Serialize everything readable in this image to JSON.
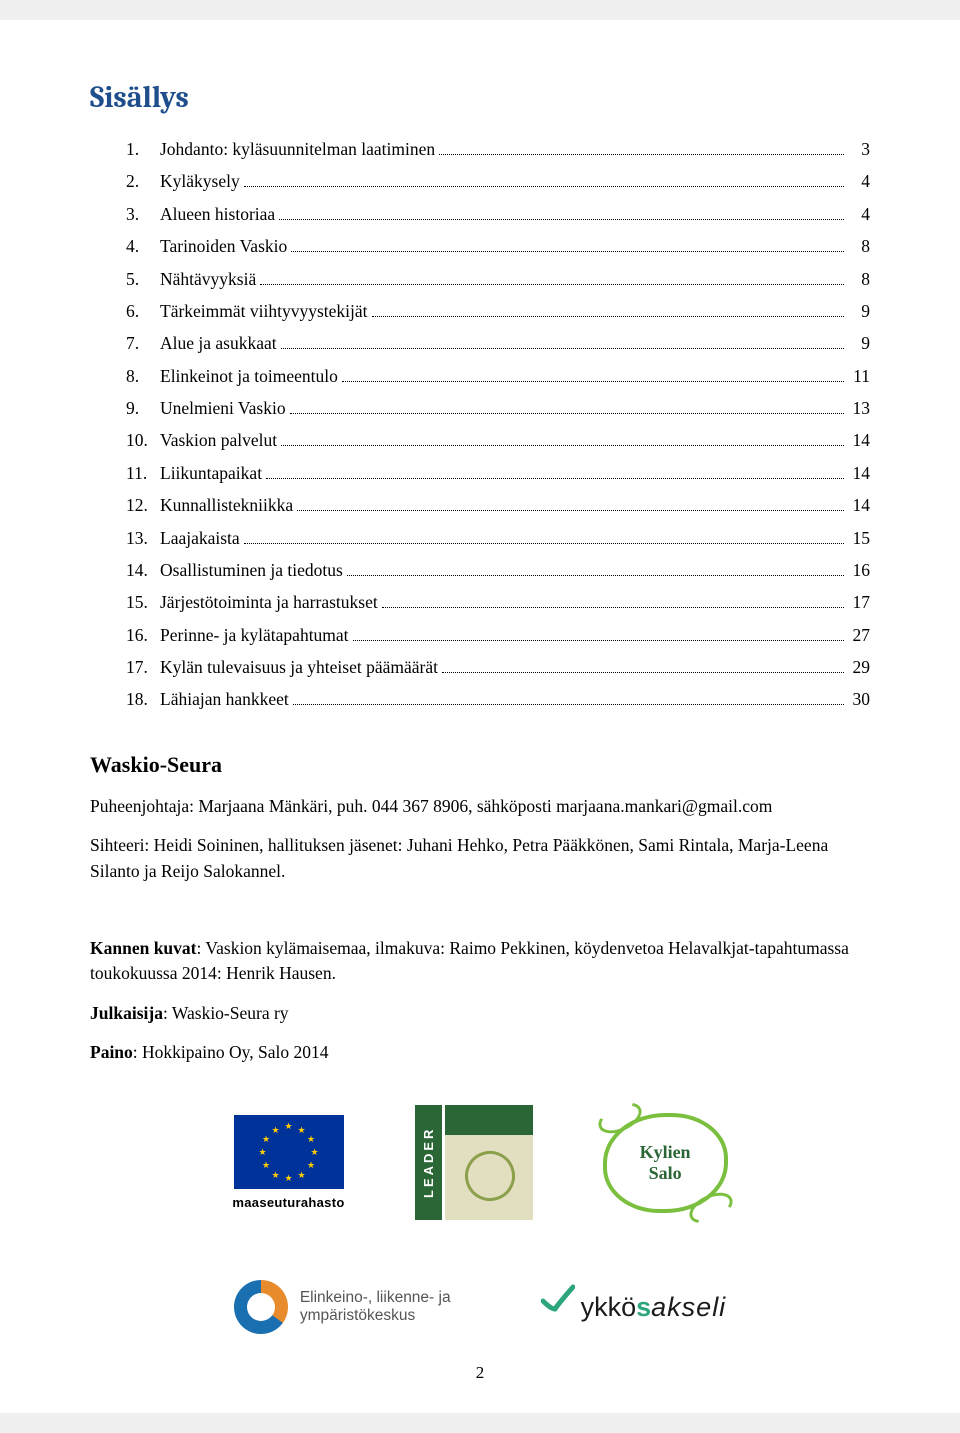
{
  "title": "Sisällys",
  "toc": [
    {
      "num": "1.",
      "label": "Johdanto: kyläsuunnitelman laatiminen",
      "page": "3"
    },
    {
      "num": "2.",
      "label": "Kyläkysely",
      "page": "4"
    },
    {
      "num": "3.",
      "label": "Alueen historiaa",
      "page": "4"
    },
    {
      "num": "4.",
      "label": "Tarinoiden Vaskio",
      "page": "8"
    },
    {
      "num": "5.",
      "label": "Nähtävyyksiä",
      "page": "8"
    },
    {
      "num": "6.",
      "label": "Tärkeimmät viihtyvyystekijät",
      "page": "9"
    },
    {
      "num": "7.",
      "label": "Alue ja asukkaat",
      "page": "9"
    },
    {
      "num": "8.",
      "label": "Elinkeinot ja toimeentulo",
      "page": "11"
    },
    {
      "num": "9.",
      "label": "Unelmieni Vaskio",
      "page": "13"
    },
    {
      "num": "10.",
      "label": "Vaskion palvelut",
      "page": "14"
    },
    {
      "num": "11.",
      "label": "Liikuntapaikat",
      "page": "14"
    },
    {
      "num": "12.",
      "label": "Kunnallistekniikka",
      "page": "14"
    },
    {
      "num": "13.",
      "label": "Laajakaista",
      "page": "15"
    },
    {
      "num": "14.",
      "label": "Osallistuminen ja tiedotus",
      "page": "16"
    },
    {
      "num": "15.",
      "label": "Järjestötoiminta ja harrastukset",
      "page": "17"
    },
    {
      "num": "16.",
      "label": "Perinne- ja kylätapahtumat",
      "page": "27"
    },
    {
      "num": "17.",
      "label": "Kylän tulevaisuus ja yhteiset päämäärät",
      "page": "29"
    },
    {
      "num": "18.",
      "label": "Lähiajan hankkeet",
      "page": "30"
    }
  ],
  "section_heading": "Waskio-Seura",
  "para1": "Puheenjohtaja: Marjaana Mänkäri, puh. 044 367 8906, sähköposti marjaana.mankari@gmail.com",
  "para2": "Sihteeri: Heidi Soininen, hallituksen jäsenet: Juhani Hehko, Petra Pääkkönen, Sami Rintala, Marja-Leena Silanto ja Reijo Salokannel.",
  "credits": {
    "kannen_label": "Kannen kuvat",
    "kannen_text": ": Vaskion kylämaisemaa, ilmakuva: Raimo Pekkinen, köydenvetoa Helavalkjat-tapahtumassa toukokuussa 2014: Henrik Hausen.",
    "julkaisija_label": "Julkaisija",
    "julkaisija_text": ": Waskio-Seura ry",
    "paino_label": "Paino",
    "paino_text": ": Hokkipaino Oy, Salo 2014"
  },
  "logos": {
    "eu_caption": "maaseuturahasto",
    "leader_text": "LEADER",
    "kylien_line1": "Kylien",
    "kylien_line2": "Salo",
    "ely_line1": "Elinkeino-, liikenne- ja",
    "ely_line2": "ympäristökeskus",
    "ykkos_part1": "ykkö",
    "ykkos_part2": "s",
    "ykkos_part3": "akseli"
  },
  "page_number": "2",
  "colors": {
    "heading": "#1f4e8c",
    "eu_blue": "#003399",
    "eu_gold": "#ffcc00",
    "leader_green": "#2b6636",
    "kylien_green": "#7bbf3f",
    "ykkos_green": "#2da57d"
  }
}
